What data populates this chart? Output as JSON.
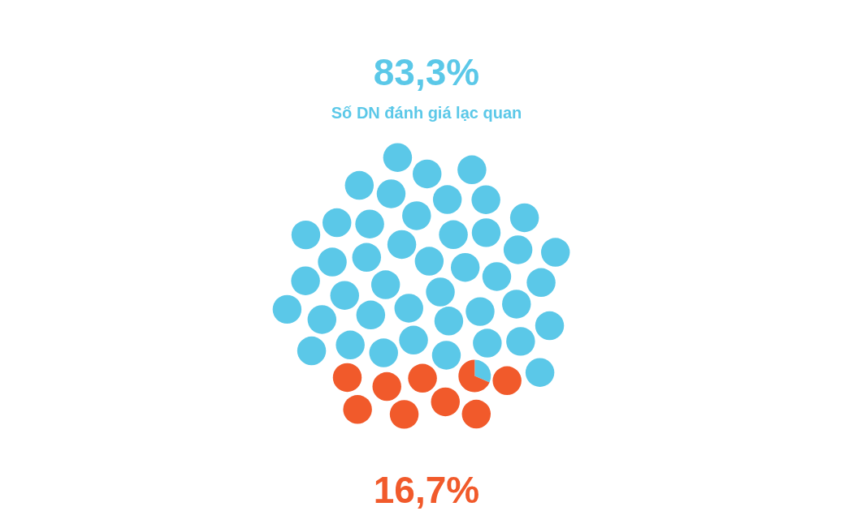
{
  "chart_data": {
    "type": "other",
    "categories": [
      "Số DN đánh giá lạc quan",
      null
    ],
    "values": [
      83.3,
      16.7
    ],
    "value_labels": [
      "83,3%",
      "16,7%"
    ],
    "colors": [
      "#5bc8e8",
      "#f15a2b"
    ]
  }
}
